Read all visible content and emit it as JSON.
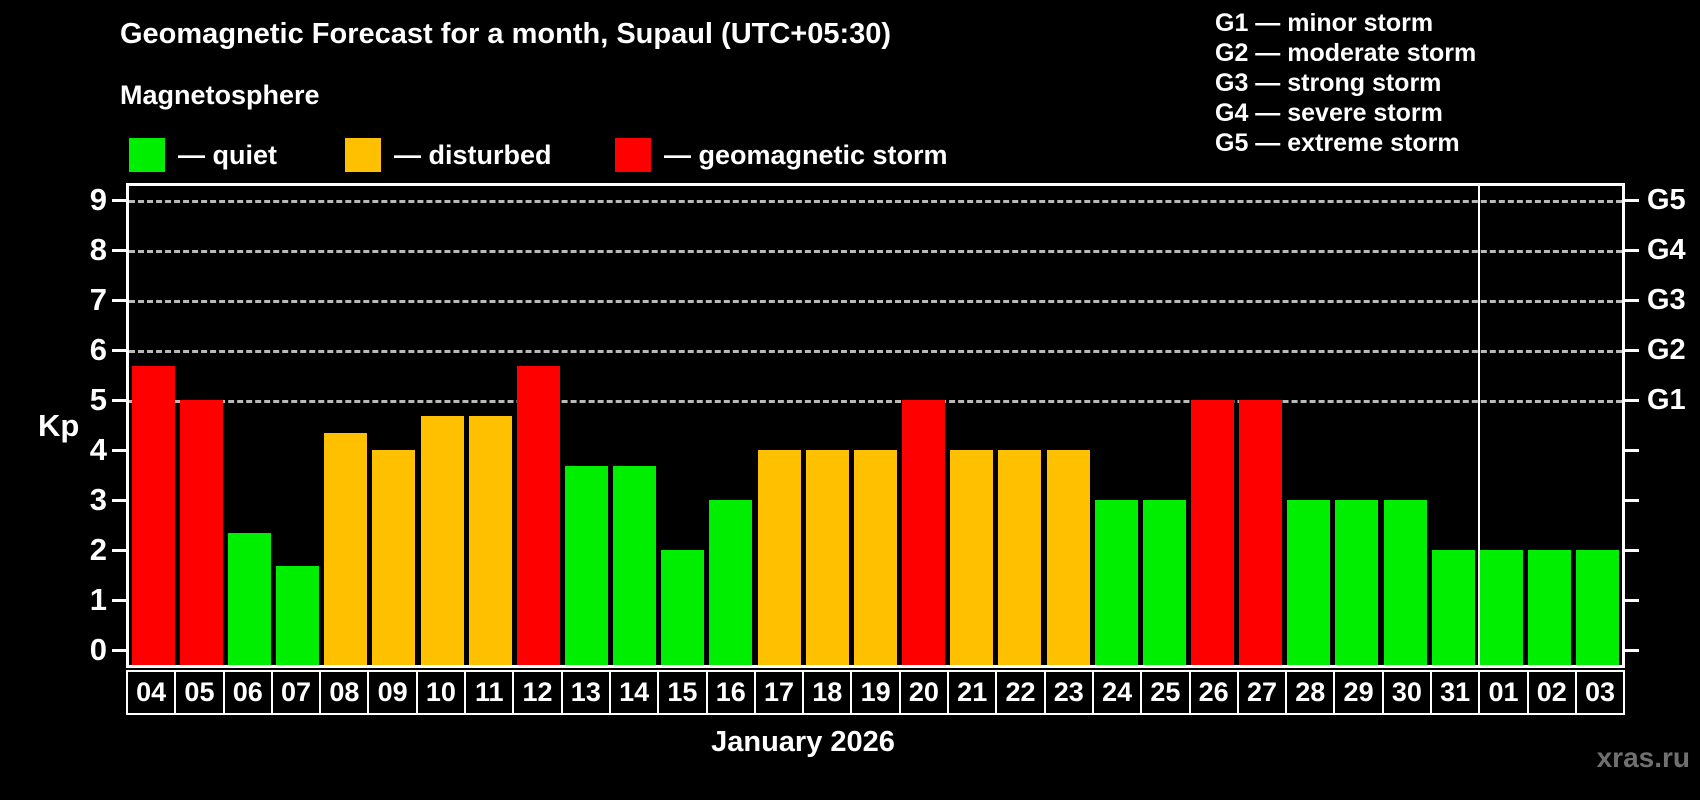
{
  "header": {
    "title": "Geomagnetic Forecast for a month, Supaul (UTC+05:30)",
    "subtitle": "Magnetosphere",
    "watermark": "xras.ru"
  },
  "legend": {
    "items": [
      {
        "name": "quiet",
        "label": "— quiet"
      },
      {
        "name": "disturbed",
        "label": "— disturbed"
      },
      {
        "name": "storm",
        "label": "— geomagnetic storm"
      }
    ]
  },
  "g_legend": [
    {
      "code": "G1",
      "label": "G1 — minor storm"
    },
    {
      "code": "G2",
      "label": "G2 — moderate storm"
    },
    {
      "code": "G3",
      "label": "G3 — strong storm"
    },
    {
      "code": "G4",
      "label": "G4 — severe storm"
    },
    {
      "code": "G5",
      "label": "G5 — extreme storm"
    }
  ],
  "chart_data": {
    "type": "bar",
    "title": "Geomagnetic Forecast for a month, Supaul (UTC+05:30)",
    "xlabel": "January 2026",
    "ylabel": "Kp",
    "ylim": [
      0,
      9
    ],
    "grid": "horizontal dashed lines at Kp 5,6,7,8,9 only",
    "legend_position": "top-left",
    "y_ticks": [
      0,
      1,
      2,
      3,
      4,
      5,
      6,
      7,
      8,
      9
    ],
    "right_axis": {
      "labels": [
        "G1",
        "G2",
        "G3",
        "G4",
        "G5"
      ],
      "positions": [
        5,
        6,
        7,
        8,
        9
      ]
    },
    "categories": [
      "04",
      "05",
      "06",
      "07",
      "08",
      "09",
      "10",
      "11",
      "12",
      "13",
      "14",
      "15",
      "16",
      "17",
      "18",
      "19",
      "20",
      "21",
      "22",
      "23",
      "24",
      "25",
      "26",
      "27",
      "28",
      "29",
      "30",
      "31",
      "01",
      "02",
      "03"
    ],
    "values": [
      5.67,
      5,
      2.33,
      1.67,
      4.33,
      4,
      4.67,
      4.67,
      5.67,
      3.67,
      3.67,
      2,
      3,
      4,
      4,
      4,
      5,
      4,
      4,
      4,
      3,
      3,
      5,
      5,
      3,
      3,
      3,
      2,
      2,
      2,
      2
    ],
    "statuses": [
      "storm",
      "storm",
      "quiet",
      "quiet",
      "disturbed",
      "disturbed",
      "disturbed",
      "disturbed",
      "storm",
      "quiet",
      "quiet",
      "quiet",
      "quiet",
      "disturbed",
      "disturbed",
      "disturbed",
      "storm",
      "disturbed",
      "disturbed",
      "disturbed",
      "quiet",
      "quiet",
      "storm",
      "storm",
      "quiet",
      "quiet",
      "quiet",
      "quiet",
      "quiet",
      "quiet",
      "quiet"
    ],
    "colors": {
      "quiet": "#00ee00",
      "disturbed": "#ffc000",
      "storm": "#ff0000"
    },
    "month_separator_after_index": 27
  }
}
